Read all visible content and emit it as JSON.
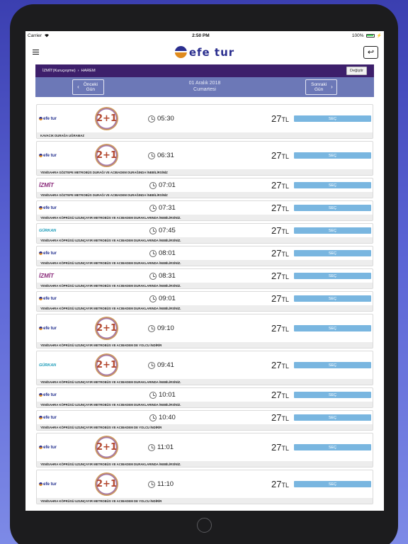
{
  "status_bar": {
    "carrier": "Carrier",
    "time": "2:50 PM",
    "battery": "100%"
  },
  "header": {
    "logo_text": "efe tur",
    "menu_icon": "hamburger-menu-icon",
    "back_icon": "undo-arrow-icon"
  },
  "route": {
    "origin": "İZMİT(Kuruçeşme)",
    "separator": "›",
    "destination": "HAREM",
    "change_label": "Değiştir"
  },
  "date_nav": {
    "prev_label": "Önceki Gün",
    "next_label": "Sonraki Gün",
    "date": "01 Aralık 2018",
    "weekday": "Cumartesi"
  },
  "trips": [
    {
      "company": "efe tur",
      "seat_layout": "2+1",
      "time": "05:30",
      "price": "27",
      "currency": "TL",
      "select_label": "SEÇ",
      "note": "KAVACIK DURAĞA UĞRAMAZ"
    },
    {
      "company": "efe tur",
      "seat_layout": "2+1",
      "time": "06:31",
      "price": "27",
      "currency": "TL",
      "select_label": "SEÇ",
      "note": "YENİSAHRA GÖZTEPE METROBÜS DURAĞI VE ACIBADEM DURAĞINDA İNEBİLİRSİNİZ"
    },
    {
      "company": "İZMİT",
      "seat_layout": "",
      "time": "07:01",
      "price": "27",
      "currency": "TL",
      "select_label": "SEÇ",
      "note": "YENİSAHRA GÖZTEPE METROBÜS DURAĞI VE ACIBADEM DURAĞINDA İNEBİLİRSİNİZ"
    },
    {
      "company": "efe tur",
      "seat_layout": "",
      "time": "07:31",
      "price": "27",
      "currency": "TL",
      "select_label": "SEÇ",
      "note": "YENİSAHRA KÖPRÜSÜ UZUNÇAYIR METROBÜS VE ACIBADEM DURAKLARINDA İNEBİLİRSİNİZ."
    },
    {
      "company": "GÜRKAN",
      "seat_layout": "",
      "time": "07:45",
      "price": "27",
      "currency": "TL",
      "select_label": "SEÇ",
      "note": "YENİSAHRA KÖPRÜSÜ UZUNÇAYIR METROBÜS VE ACIBADEM DURAKLARINDA İNEBİLİRSİNİZ."
    },
    {
      "company": "efe tur",
      "seat_layout": "",
      "time": "08:01",
      "price": "27",
      "currency": "TL",
      "select_label": "SEÇ",
      "note": "YENİSAHRA KÖPRÜSÜ UZUNÇAYIR METROBÜS VE ACIBADEM DURAKLARINDA İNEBİLİRSİNİZ."
    },
    {
      "company": "İZMİT",
      "seat_layout": "",
      "time": "08:31",
      "price": "27",
      "currency": "TL",
      "select_label": "SEÇ",
      "note": "YENİSAHRA KÖPRÜSÜ UZUNÇAYIR METROBÜS VE ACIBADEM DURAKLARINDA İNEBİLİRSİNİZ."
    },
    {
      "company": "efe tur",
      "seat_layout": "",
      "time": "09:01",
      "price": "27",
      "currency": "TL",
      "select_label": "SEÇ",
      "note": "YENİSAHRA KÖPRÜSÜ UZUNÇAYIR METROBÜS VE ACIBADEM DURAKLARINDA İNEBİLİRSİNİZ."
    },
    {
      "company": "efe tur",
      "seat_layout": "2+1",
      "time": "09:10",
      "price": "27",
      "currency": "TL",
      "select_label": "SEÇ",
      "note": "YENİSAHRA KÖPRÜSÜ UZUNÇAYIR METROBÜS VE ACIBADEM DE YOLCU İNDİRİR"
    },
    {
      "company": "GÜRKAN",
      "seat_layout": "2+1",
      "time": "09:41",
      "price": "27",
      "currency": "TL",
      "select_label": "SEÇ",
      "note": "YENİSAHRA KÖPRÜSÜ UZUNÇAYIR METROBÜS VE ACIBADEM DURAKLARINDA İNEBİLİRSİNİZ."
    },
    {
      "company": "efe tur",
      "seat_layout": "",
      "time": "10:01",
      "price": "27",
      "currency": "TL",
      "select_label": "SEÇ",
      "note": "YENİSAHRA KÖPRÜSÜ UZUNÇAYIR METROBÜS VE ACIBADEM DURAKLARINDA İNEBİLİRSİNİZ."
    },
    {
      "company": "efe tur",
      "seat_layout": "",
      "time": "10:40",
      "price": "27",
      "currency": "TL",
      "select_label": "SEÇ",
      "note": "YENİSAHRA KÖPRÜSÜ UZUNÇAYIR METROBÜS VE ACIBADEM DE YOLCU İNDİRİR"
    },
    {
      "company": "efe tur",
      "seat_layout": "2+1",
      "time": "11:01",
      "price": "27",
      "currency": "TL",
      "select_label": "SEÇ",
      "note": "YENİSAHRA KÖPRÜSÜ UZUNÇAYIR METROBÜS VE ACIBADEM DURAKLARINDA İNEBİLİRSİNİZ."
    },
    {
      "company": "efe tur",
      "seat_layout": "2+1",
      "time": "11:10",
      "price": "27",
      "currency": "TL",
      "select_label": "SEÇ",
      "note": "YENİSAHRA KÖPRÜSÜ UZUNÇAYIR METROBÜS VE ACIBADEM DE YOLCU İNDİRİR"
    }
  ],
  "colors": {
    "route_bar": "#3d1f6b",
    "date_bar": "#6c78b7",
    "select_button": "#79b6e0",
    "brand_blue": "#2b2f8f",
    "brand_orange": "#e08b1d"
  }
}
